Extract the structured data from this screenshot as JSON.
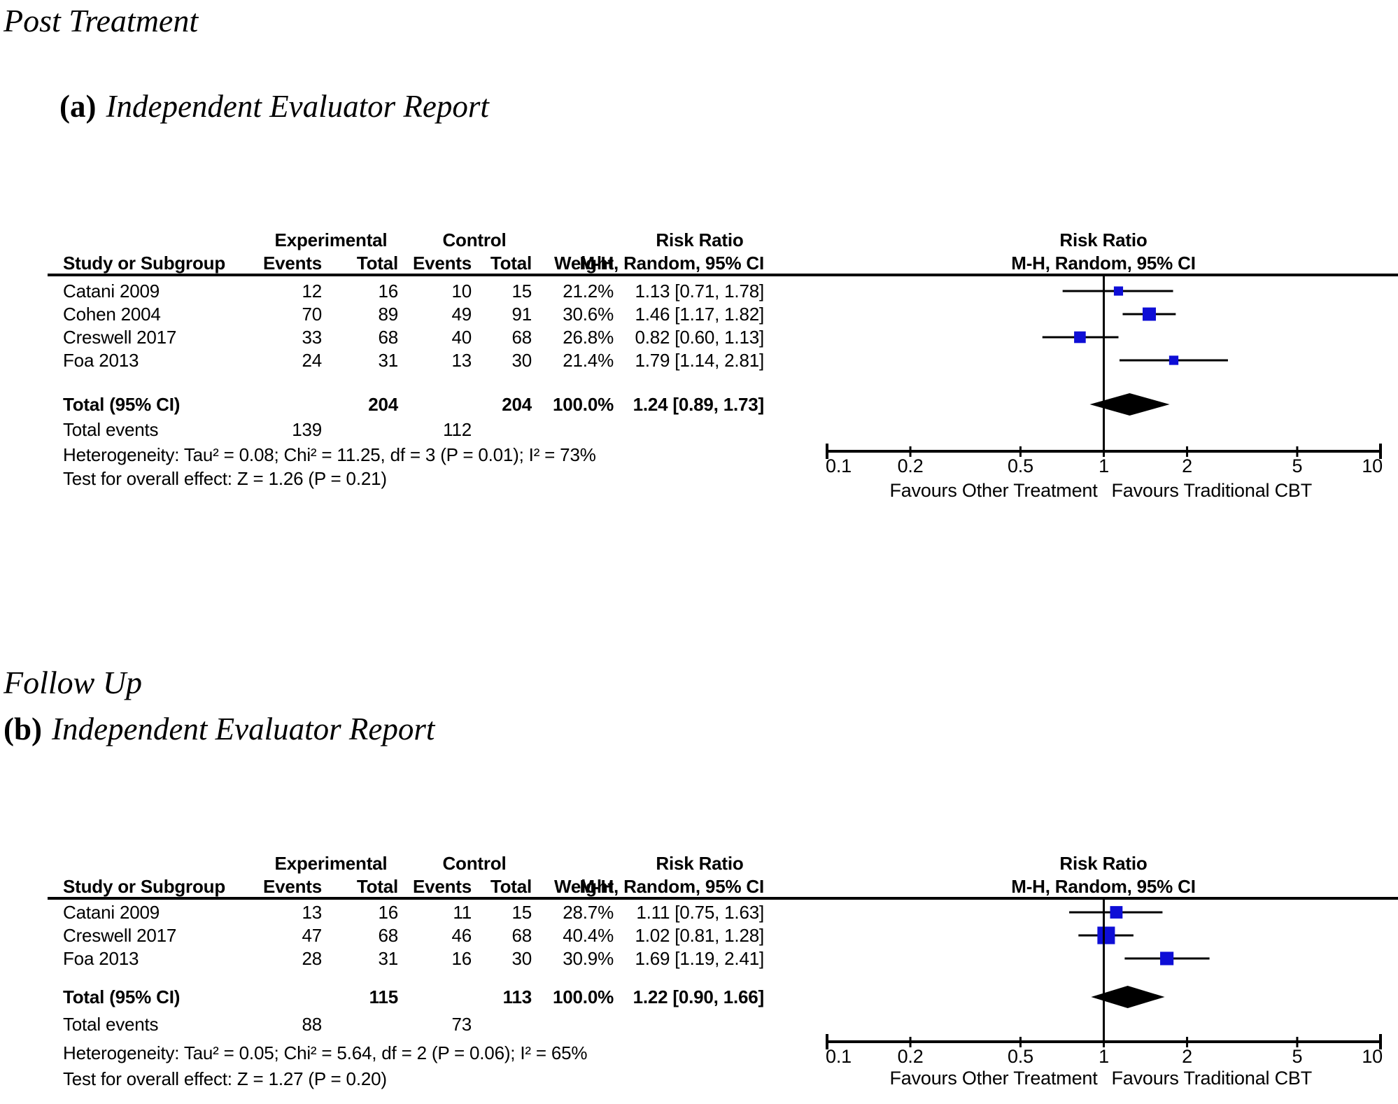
{
  "titles": {
    "section_a_phase": "Post Treatment",
    "panel_a_label": "(a)",
    "panel_a_title": "Independent Evaluator Report",
    "section_b_phase": "Follow Up",
    "panel_b_label": "(b)",
    "panel_b_title": "Independent Evaluator Report"
  },
  "colors": {
    "marker": "#0E0ED6",
    "diamond": "#000000",
    "line": "#000000",
    "text": "#000000"
  },
  "chart_data": [
    {
      "type": "forest",
      "panel": "a",
      "effect_measure": "Risk Ratio",
      "group1_label": "Experimental",
      "group2_label": "Control",
      "columns": {
        "study": "Study or Subgroup",
        "events": "Events",
        "total": "Total",
        "weight": "Weight",
        "mh": "M-H, Random, 95% CI"
      },
      "studies": [
        {
          "name": "Catani 2009",
          "exp_events": 12,
          "exp_total": 16,
          "ctl_events": 10,
          "ctl_total": 15,
          "weight": "21.2%",
          "weight_pct": 21.2,
          "rr": 1.13,
          "ci_low": 0.71,
          "ci_high": 1.78,
          "estimate_label": "1.13 [0.71, 1.78]"
        },
        {
          "name": "Cohen 2004",
          "exp_events": 70,
          "exp_total": 89,
          "ctl_events": 49,
          "ctl_total": 91,
          "weight": "30.6%",
          "weight_pct": 30.6,
          "rr": 1.46,
          "ci_low": 1.17,
          "ci_high": 1.82,
          "estimate_label": "1.46 [1.17, 1.82]"
        },
        {
          "name": "Creswell 2017",
          "exp_events": 33,
          "exp_total": 68,
          "ctl_events": 40,
          "ctl_total": 68,
          "weight": "26.8%",
          "weight_pct": 26.8,
          "rr": 0.82,
          "ci_low": 0.6,
          "ci_high": 1.13,
          "estimate_label": "0.82 [0.60, 1.13]"
        },
        {
          "name": "Foa 2013",
          "exp_events": 24,
          "exp_total": 31,
          "ctl_events": 13,
          "ctl_total": 30,
          "weight": "21.4%",
          "weight_pct": 21.4,
          "rr": 1.79,
          "ci_low": 1.14,
          "ci_high": 2.81,
          "estimate_label": "1.79 [1.14, 2.81]"
        }
      ],
      "total": {
        "label": "Total (95% CI)",
        "exp_total": 204,
        "ctl_total": 204,
        "weight": "100.0%",
        "rr": 1.24,
        "ci_low": 0.89,
        "ci_high": 1.73,
        "estimate_label": "1.24 [0.89, 1.73]"
      },
      "total_events": {
        "label": "Total events",
        "exp": 139,
        "ctl": 112
      },
      "heterogeneity": "Heterogeneity: Tau² = 0.08; Chi² = 11.25, df = 3 (P = 0.01); I² = 73%",
      "overall_effect": "Test for overall effect: Z = 1.26 (P = 0.21)",
      "axis": {
        "scale": "log",
        "min": 0.1,
        "max": 10,
        "ticks": [
          "0.1",
          "0.2",
          "0.5",
          "1",
          "2",
          "5",
          "10"
        ]
      },
      "favours_left": "Favours Other Treatment",
      "favours_right": "Favours Traditional CBT"
    },
    {
      "type": "forest",
      "panel": "b",
      "effect_measure": "Risk Ratio",
      "group1_label": "Experimental",
      "group2_label": "Control",
      "columns": {
        "study": "Study or Subgroup",
        "events": "Events",
        "total": "Total",
        "weight": "Weight",
        "mh": "M-H, Random, 95% CI"
      },
      "studies": [
        {
          "name": "Catani 2009",
          "exp_events": 13,
          "exp_total": 16,
          "ctl_events": 11,
          "ctl_total": 15,
          "weight": "28.7%",
          "weight_pct": 28.7,
          "rr": 1.11,
          "ci_low": 0.75,
          "ci_high": 1.63,
          "estimate_label": "1.11 [0.75, 1.63]"
        },
        {
          "name": "Creswell 2017",
          "exp_events": 47,
          "exp_total": 68,
          "ctl_events": 46,
          "ctl_total": 68,
          "weight": "40.4%",
          "weight_pct": 40.4,
          "rr": 1.02,
          "ci_low": 0.81,
          "ci_high": 1.28,
          "estimate_label": "1.02 [0.81, 1.28]"
        },
        {
          "name": "Foa 2013",
          "exp_events": 28,
          "exp_total": 31,
          "ctl_events": 16,
          "ctl_total": 30,
          "weight": "30.9%",
          "weight_pct": 30.9,
          "rr": 1.69,
          "ci_low": 1.19,
          "ci_high": 2.41,
          "estimate_label": "1.69 [1.19, 2.41]"
        }
      ],
      "total": {
        "label": "Total (95% CI)",
        "exp_total": 115,
        "ctl_total": 113,
        "weight": "100.0%",
        "rr": 1.22,
        "ci_low": 0.9,
        "ci_high": 1.66,
        "estimate_label": "1.22 [0.90, 1.66]"
      },
      "total_events": {
        "label": "Total events",
        "exp": 88,
        "ctl": 73
      },
      "heterogeneity": "Heterogeneity: Tau² = 0.05; Chi² = 5.64, df = 2 (P = 0.06); I² = 65%",
      "overall_effect": "Test for overall effect: Z = 1.27 (P = 0.20)",
      "axis": {
        "scale": "log",
        "min": 0.1,
        "max": 10,
        "ticks": [
          "0.1",
          "0.2",
          "0.5",
          "1",
          "2",
          "5",
          "10"
        ]
      },
      "favours_left": "Favours Other Treatment",
      "favours_right": "Favours Traditional CBT"
    }
  ]
}
